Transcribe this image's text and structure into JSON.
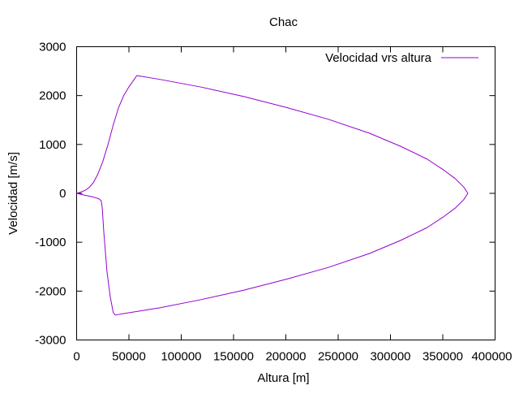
{
  "chart_data": {
    "type": "line",
    "title": "Chac",
    "xlabel": "Altura [m]",
    "ylabel": "Velocidad [m/s]",
    "xlim": [
      0,
      400000
    ],
    "ylim": [
      -3000,
      3000
    ],
    "x_ticks": [
      0,
      50000,
      100000,
      150000,
      200000,
      250000,
      300000,
      350000,
      400000
    ],
    "y_ticks": [
      -3000,
      -2000,
      -1000,
      0,
      1000,
      2000,
      3000
    ],
    "grid": false,
    "legend": {
      "position": "top-right"
    },
    "series": [
      {
        "name": "Velocidad vrs altura",
        "color": "#9400d3",
        "points": [
          [
            0,
            0
          ],
          [
            3000,
            20
          ],
          [
            8000,
            60
          ],
          [
            12000,
            120
          ],
          [
            16000,
            220
          ],
          [
            20000,
            380
          ],
          [
            25000,
            650
          ],
          [
            30000,
            1000
          ],
          [
            35000,
            1400
          ],
          [
            40000,
            1750
          ],
          [
            45000,
            2000
          ],
          [
            50000,
            2180
          ],
          [
            55000,
            2330
          ],
          [
            57500,
            2410
          ],
          [
            80000,
            2330
          ],
          [
            120000,
            2170
          ],
          [
            160000,
            1980
          ],
          [
            200000,
            1760
          ],
          [
            240000,
            1520
          ],
          [
            280000,
            1230
          ],
          [
            310000,
            960
          ],
          [
            335000,
            700
          ],
          [
            350000,
            490
          ],
          [
            362000,
            300
          ],
          [
            370000,
            130
          ],
          [
            374000,
            0
          ],
          [
            370000,
            -130
          ],
          [
            362000,
            -300
          ],
          [
            350000,
            -490
          ],
          [
            335000,
            -700
          ],
          [
            310000,
            -960
          ],
          [
            280000,
            -1230
          ],
          [
            240000,
            -1520
          ],
          [
            200000,
            -1760
          ],
          [
            160000,
            -1980
          ],
          [
            120000,
            -2170
          ],
          [
            80000,
            -2340
          ],
          [
            45000,
            -2460
          ],
          [
            37000,
            -2490
          ],
          [
            35000,
            -2440
          ],
          [
            32000,
            -2100
          ],
          [
            29000,
            -1600
          ],
          [
            26000,
            -800
          ],
          [
            24500,
            -300
          ],
          [
            23500,
            -150
          ],
          [
            21000,
            -110
          ],
          [
            15000,
            -70
          ],
          [
            8000,
            -40
          ],
          [
            3000,
            -15
          ],
          [
            0,
            0
          ]
        ]
      }
    ]
  }
}
